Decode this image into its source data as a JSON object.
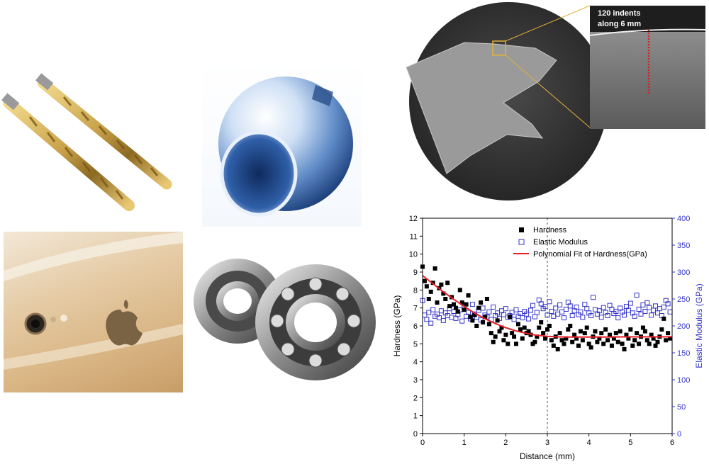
{
  "photos": {
    "sample_annotation": "120 indents along 6 mm",
    "sample_annotation_line1": "120 indents",
    "sample_annotation_line2": "along 6 mm"
  },
  "colors": {
    "hardness": "#000000",
    "modulus": "#3333cc",
    "fit": "#e8202a",
    "gold": "#c9a24a"
  },
  "chart_data": {
    "type": "scatter",
    "xlabel": "Distance (mm)",
    "ylabel": "Hardness (GPa)",
    "y2label": "Elastic Modulus (GPa)",
    "xlim": [
      0,
      6
    ],
    "ylim": [
      0,
      12
    ],
    "y2lim": [
      0,
      400
    ],
    "xticks": [
      "0",
      "1",
      "2",
      "3",
      "4",
      "5",
      "6"
    ],
    "yticks": [
      "0",
      "1",
      "2",
      "3",
      "4",
      "5",
      "6",
      "7",
      "8",
      "9",
      "10",
      "11",
      "12"
    ],
    "y2ticks": [
      "0",
      "50",
      "100",
      "150",
      "200",
      "250",
      "300",
      "350",
      "400"
    ],
    "vline_x": 3,
    "legend_position": "top-right",
    "legend": [
      "Hardness",
      "Elastic Modulus",
      "Polynomial Fit of Hardness(GPa)"
    ],
    "series": [
      {
        "name": "Hardness",
        "marker": "filled-square",
        "axis": "left",
        "x": [
          0.0,
          0.05,
          0.1,
          0.15,
          0.2,
          0.25,
          0.3,
          0.35,
          0.4,
          0.45,
          0.5,
          0.55,
          0.6,
          0.65,
          0.7,
          0.75,
          0.8,
          0.85,
          0.9,
          0.95,
          1.0,
          1.05,
          1.1,
          1.15,
          1.2,
          1.25,
          1.3,
          1.35,
          1.4,
          1.45,
          1.5,
          1.55,
          1.6,
          1.65,
          1.7,
          1.75,
          1.8,
          1.85,
          1.9,
          1.95,
          2.0,
          2.05,
          2.1,
          2.15,
          2.2,
          2.25,
          2.3,
          2.35,
          2.4,
          2.45,
          2.5,
          2.55,
          2.6,
          2.65,
          2.7,
          2.75,
          2.8,
          2.85,
          2.9,
          2.95,
          3.0,
          3.05,
          3.1,
          3.15,
          3.2,
          3.25,
          3.3,
          3.35,
          3.4,
          3.45,
          3.5,
          3.55,
          3.6,
          3.65,
          3.7,
          3.75,
          3.8,
          3.85,
          3.9,
          3.95,
          4.0,
          4.05,
          4.1,
          4.15,
          4.2,
          4.25,
          4.3,
          4.35,
          4.4,
          4.45,
          4.5,
          4.55,
          4.6,
          4.65,
          4.7,
          4.75,
          4.8,
          4.85,
          4.9,
          4.95,
          5.0,
          5.05,
          5.1,
          5.15,
          5.2,
          5.25,
          5.3,
          5.35,
          5.4,
          5.45,
          5.5,
          5.55,
          5.6,
          5.65,
          5.7,
          5.75,
          5.8,
          5.85,
          5.9,
          5.95
        ],
        "values": [
          9.3,
          8.5,
          8.2,
          7.5,
          7.9,
          8.4,
          9.2,
          7.3,
          8.1,
          8.3,
          7.8,
          7.5,
          8.4,
          7.1,
          7.6,
          7.2,
          7.0,
          6.8,
          8.0,
          7.3,
          6.9,
          7.2,
          7.7,
          6.5,
          6.3,
          6.6,
          6.0,
          7.0,
          7.3,
          6.2,
          6.5,
          7.5,
          6.1,
          5.6,
          5.1,
          5.4,
          6.3,
          5.7,
          5.9,
          5.2,
          5.5,
          5.0,
          6.5,
          5.6,
          5.4,
          5.0,
          6.1,
          5.8,
          5.3,
          5.9,
          5.6,
          5.7,
          5.5,
          5.0,
          5.1,
          5.4,
          5.9,
          6.2,
          5.6,
          5.3,
          5.8,
          6.0,
          5.2,
          4.9,
          5.4,
          4.7,
          5.6,
          5.2,
          5.0,
          5.3,
          5.8,
          6.0,
          5.1,
          5.5,
          5.3,
          4.9,
          5.7,
          5.2,
          5.6,
          5.9,
          5.0,
          4.8,
          5.4,
          5.7,
          5.1,
          5.3,
          5.6,
          5.0,
          5.8,
          5.2,
          5.5,
          4.9,
          5.3,
          5.6,
          5.1,
          5.7,
          5.0,
          4.7,
          5.5,
          5.3,
          5.8,
          4.9,
          5.2,
          5.6,
          5.0,
          5.4,
          5.9,
          5.7,
          5.2,
          5.0,
          5.5,
          5.3,
          4.9,
          5.1,
          5.4,
          5.8,
          6.4,
          5.2,
          5.6,
          5.3
        ]
      },
      {
        "name": "Elastic Modulus",
        "marker": "open-square",
        "axis": "right",
        "x": [
          0.0,
          0.05,
          0.1,
          0.15,
          0.2,
          0.25,
          0.3,
          0.35,
          0.4,
          0.45,
          0.5,
          0.55,
          0.6,
          0.65,
          0.7,
          0.75,
          0.8,
          0.85,
          0.9,
          0.95,
          1.0,
          1.05,
          1.1,
          1.15,
          1.2,
          1.25,
          1.3,
          1.35,
          1.4,
          1.45,
          1.5,
          1.55,
          1.6,
          1.65,
          1.7,
          1.75,
          1.8,
          1.85,
          1.9,
          1.95,
          2.0,
          2.05,
          2.1,
          2.15,
          2.2,
          2.25,
          2.3,
          2.35,
          2.4,
          2.45,
          2.5,
          2.55,
          2.6,
          2.65,
          2.7,
          2.75,
          2.8,
          2.85,
          2.9,
          2.95,
          3.0,
          3.05,
          3.1,
          3.15,
          3.2,
          3.25,
          3.3,
          3.35,
          3.4,
          3.45,
          3.5,
          3.55,
          3.6,
          3.65,
          3.7,
          3.75,
          3.8,
          3.85,
          3.9,
          3.95,
          4.0,
          4.05,
          4.1,
          4.15,
          4.2,
          4.25,
          4.3,
          4.35,
          4.4,
          4.45,
          4.5,
          4.55,
          4.6,
          4.65,
          4.7,
          4.75,
          4.8,
          4.85,
          4.9,
          4.95,
          5.0,
          5.05,
          5.1,
          5.15,
          5.2,
          5.25,
          5.3,
          5.35,
          5.4,
          5.45,
          5.5,
          5.55,
          5.6,
          5.65,
          5.7,
          5.75,
          5.8,
          5.85,
          5.9,
          5.95
        ],
        "values": [
          247,
          220,
          212,
          225,
          205,
          230,
          218,
          222,
          215,
          228,
          210,
          224,
          219,
          232,
          216,
          227,
          214,
          221,
          230,
          209,
          235,
          218,
          225,
          213,
          240,
          222,
          216,
          229,
          211,
          233,
          220,
          217,
          226,
          212,
          235,
          219,
          224,
          214,
          228,
          221,
          232,
          216,
          219,
          225,
          212,
          230,
          218,
          223,
          215,
          227,
          222,
          213,
          229,
          238,
          217,
          225,
          248,
          241,
          232,
          236,
          220,
          245,
          227,
          218,
          233,
          222,
          239,
          226,
          215,
          231,
          244,
          237,
          219,
          228,
          235,
          221,
          226,
          216,
          240,
          232,
          224,
          219,
          253,
          230,
          222,
          228,
          216,
          234,
          225,
          219,
          238,
          231,
          223,
          227,
          215,
          233,
          226,
          220,
          236,
          229,
          242,
          224,
          218,
          257,
          231,
          222,
          239,
          227,
          243,
          234,
          220,
          229,
          237,
          224,
          232,
          219,
          235,
          247,
          241,
          226
        ]
      },
      {
        "name": "Polynomial Fit of Hardness(GPa)",
        "type": "line",
        "axis": "left",
        "x": [
          0,
          0.25,
          0.5,
          0.75,
          1.0,
          1.25,
          1.5,
          1.75,
          2.0,
          2.25,
          2.5,
          2.75,
          3.0,
          3.25,
          3.5,
          3.75,
          4.0,
          4.25,
          4.5,
          4.75,
          5.0,
          5.25,
          5.5,
          5.75,
          6.0
        ],
        "values": [
          8.8,
          8.35,
          7.9,
          7.48,
          7.08,
          6.72,
          6.4,
          6.13,
          5.9,
          5.72,
          5.58,
          5.48,
          5.42,
          5.39,
          5.38,
          5.38,
          5.38,
          5.38,
          5.38,
          5.39,
          5.39,
          5.39,
          5.39,
          5.39,
          5.4
        ]
      }
    ]
  }
}
